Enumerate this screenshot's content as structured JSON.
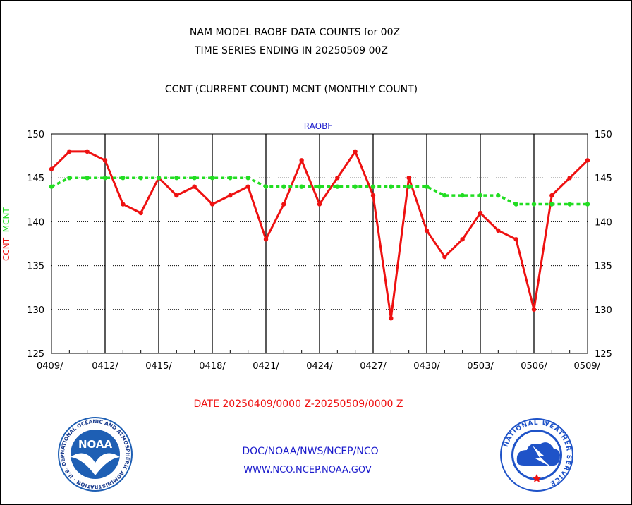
{
  "header": {
    "title_line1": "NAM MODEL RAOBF DATA COUNTS for 00Z",
    "title_line2": "TIME SERIES ENDING IN 20250509 00Z",
    "subtitle": "CCNT (CURRENT COUNT) MCNT (MONTHLY COUNT)",
    "panel_label": "RAOBF"
  },
  "axis": {
    "ylabel_ccnt": "CCNT",
    "ylabel_mcnt": "MCNT",
    "date_range": "DATE 20250409/0000 Z-20250509/0000 Z"
  },
  "footer": {
    "credit_line1": "DOC/NOAA/NWS/NCEP/NCO",
    "credit_line2": "WWW.NCO.NCEP.NOAA.GOV",
    "noaa_logo_text": "NOAA",
    "noaa_logo_ring": "NATIONAL OCEANIC AND ATMOSPHERIC ADMINISTRATION · U.S. DEPARTMENT OF COMMERCE",
    "nws_logo_ring": "NATIONAL WEATHER SERVICE"
  },
  "colors": {
    "ccnt": "#ee1111",
    "mcnt": "#22dd22",
    "panel_label": "#1a1acc",
    "credits": "#1a1acc",
    "noaa_blue": "#1e5fb4",
    "nws_blue": "#1f53c8"
  },
  "chart_data": {
    "type": "line",
    "title": "NAM MODEL RAOBF DATA COUNTS for 00Z",
    "ylim": [
      125,
      150
    ],
    "yticks": [
      125,
      130,
      135,
      140,
      145,
      150
    ],
    "x_tick_labels": [
      "0409/",
      "0412/",
      "0415/",
      "0418/",
      "0421/",
      "0424/",
      "0427/",
      "0430/",
      "0503/",
      "0506/",
      "0509/"
    ],
    "grid": true,
    "dates": [
      "0409",
      "0410",
      "0411",
      "0412",
      "0413",
      "0414",
      "0415",
      "0416",
      "0417",
      "0418",
      "0419",
      "0420",
      "0421",
      "0422",
      "0423",
      "0424",
      "0425",
      "0426",
      "0427",
      "0428",
      "0429",
      "0430",
      "0501",
      "0502",
      "0503",
      "0504",
      "0505",
      "0506",
      "0507",
      "0508",
      "0509"
    ],
    "series": [
      {
        "name": "CCNT",
        "style": "solid",
        "values": [
          146,
          148,
          148,
          147,
          142,
          141,
          145,
          143,
          144,
          142,
          143,
          144,
          138,
          142,
          147,
          142,
          145,
          148,
          143,
          129,
          145,
          139,
          136,
          138,
          141,
          139,
          138,
          130,
          143,
          145,
          147
        ]
      },
      {
        "name": "MCNT",
        "style": "dashed",
        "values": [
          144,
          145,
          145,
          145,
          145,
          145,
          145,
          145,
          145,
          145,
          145,
          145,
          144,
          144,
          144,
          144,
          144,
          144,
          144,
          144,
          144,
          144,
          143,
          143,
          143,
          143,
          142,
          142,
          142,
          142,
          142
        ]
      }
    ]
  }
}
